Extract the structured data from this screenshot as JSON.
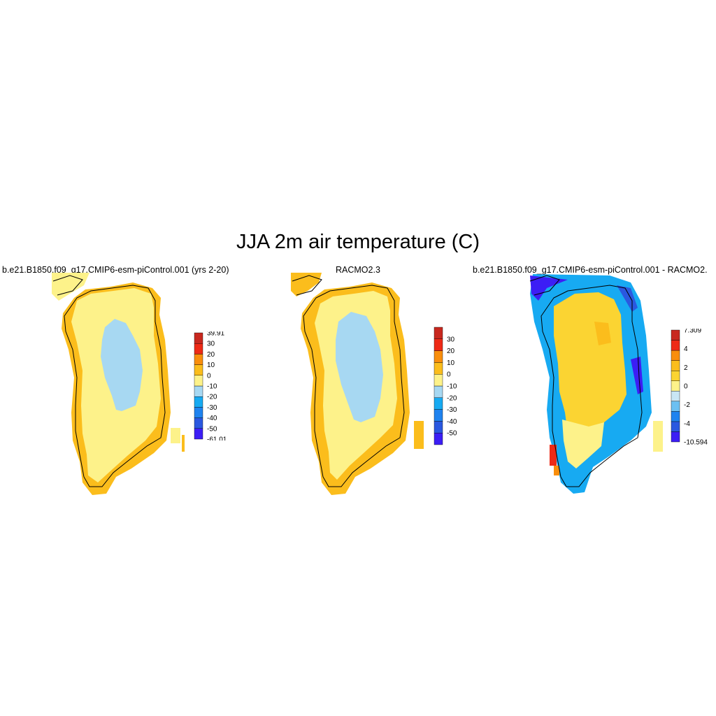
{
  "title": "JJA 2m air temperature (C)",
  "panels": [
    {
      "id": "model",
      "title": "b.e21.B1850.f09_g17.CMIP6-esm-piControl.001 (yrs 2-20)",
      "colorbar": {
        "colors": [
          "#3c1ef5",
          "#2a58e0",
          "#1f83ef",
          "#17aaf2",
          "#a7d8f2",
          "#fdf28a",
          "#fbbd1c",
          "#f98e0c",
          "#ee2a16",
          "#c8281f"
        ],
        "labels": [
          "-61.01",
          "-50",
          "-40",
          "-30",
          "-20",
          "-10",
          "0",
          "10",
          "20",
          "30",
          "39.91"
        ]
      }
    },
    {
      "id": "obs",
      "title": "RACMO2.3",
      "colorbar": {
        "colors": [
          "#3c1ef5",
          "#2a58e0",
          "#1f83ef",
          "#17aaf2",
          "#a7d8f2",
          "#fdf28a",
          "#fbbd1c",
          "#f98e0c",
          "#ee2a16",
          "#c8281f"
        ],
        "labels": [
          "",
          "-50",
          "-40",
          "-30",
          "-20",
          "-10",
          "0",
          "10",
          "20",
          "30",
          ""
        ]
      }
    },
    {
      "id": "diff",
      "title": "b.e21.B1850.f09_g17.CMIP6-esm-piControl.001 - RACMO2.",
      "colorbar": {
        "colors": [
          "#3c1ef5",
          "#2a58e0",
          "#1f83ef",
          "#6cc0f2",
          "#c9e6f5",
          "#fdf28a",
          "#fbd432",
          "#fbbd1c",
          "#f98e0c",
          "#ee2a16",
          "#c8281f"
        ],
        "labels": [
          "-10.594",
          "",
          "-4",
          "",
          "-2",
          "",
          "0",
          "",
          "2",
          "",
          "4",
          "",
          "7.309"
        ]
      }
    }
  ]
}
